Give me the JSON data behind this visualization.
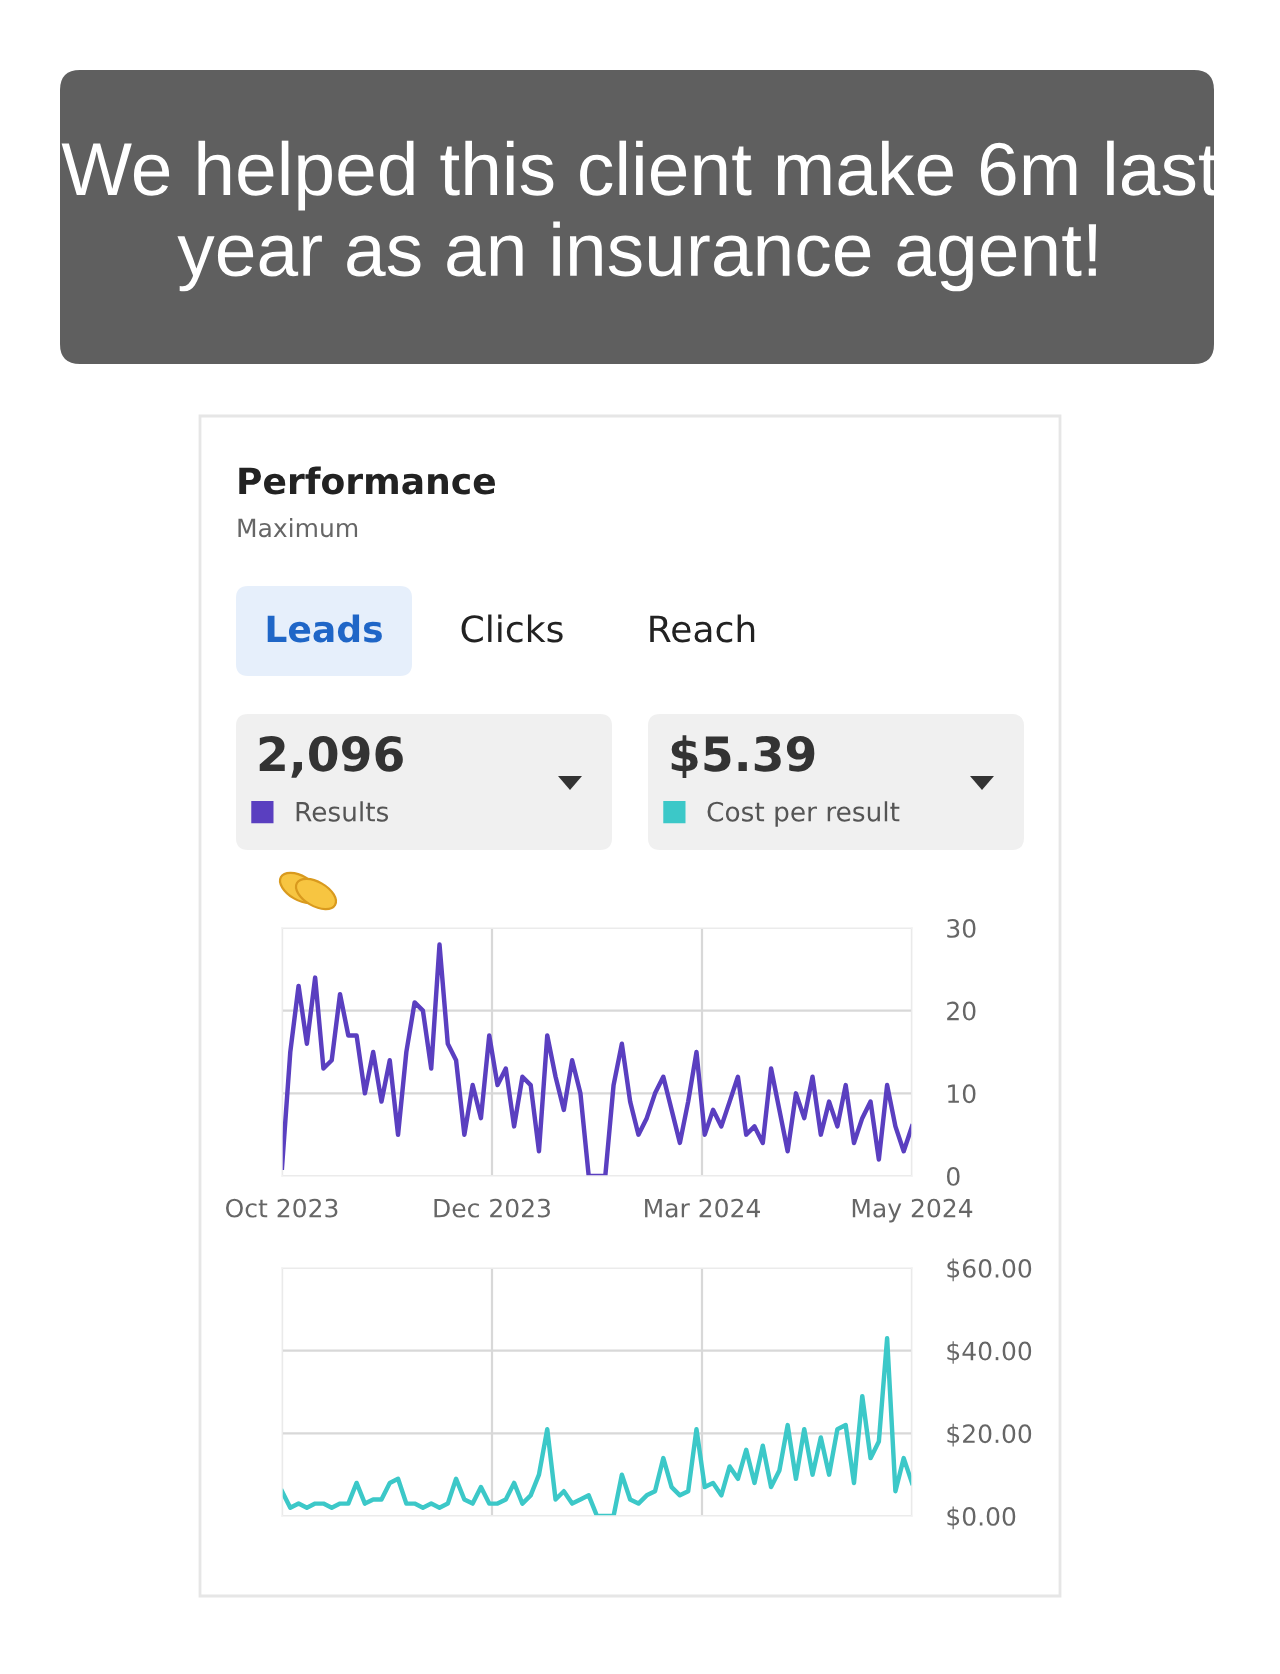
{
  "chart_data": [
    {
      "type": "other",
      "title": "We helped this client make 6m last year as an insurance agent!"
    },
    {
      "type": "line",
      "title": "Performance",
      "subtitle": "Maximum",
      "annotations": [
        "Leads",
        "Clicks",
        "Reach",
        "2,096",
        "$5.39"
      ],
      "x": [
        "2023-10-01",
        "2023-10-04",
        "2023-10-07",
        "2023-10-10",
        "2023-10-13",
        "2023-10-16",
        "2023-10-19",
        "2023-10-22",
        "2023-10-25",
        "2023-10-28",
        "2023-10-31",
        "2023-11-03",
        "2023-11-06",
        "2023-11-09",
        "2023-11-12",
        "2023-11-15",
        "2023-11-18",
        "2023-11-21",
        "2023-11-24",
        "2023-11-27",
        "2023-11-30",
        "2023-12-03",
        "2023-12-06",
        "2023-12-09",
        "2023-12-12",
        "2023-12-15",
        "2023-12-18",
        "2023-12-21",
        "2023-12-24",
        "2023-12-27",
        "2023-12-30",
        "2024-01-02",
        "2024-01-05",
        "2024-01-08",
        "2024-01-11",
        "2024-01-14",
        "2024-01-17",
        "2024-01-20",
        "2024-01-23",
        "2024-01-26",
        "2024-01-29",
        "2024-02-01",
        "2024-02-04",
        "2024-02-07",
        "2024-02-10",
        "2024-02-13",
        "2024-02-16",
        "2024-02-19",
        "2024-02-22",
        "2024-02-25",
        "2024-02-28",
        "2024-03-02",
        "2024-03-05",
        "2024-03-08",
        "2024-03-11",
        "2024-03-14",
        "2024-03-17",
        "2024-03-20",
        "2024-03-23",
        "2024-03-26",
        "2024-03-29",
        "2024-04-01",
        "2024-04-04",
        "2024-04-07",
        "2024-04-10",
        "2024-04-13",
        "2024-04-16",
        "2024-04-19",
        "2024-04-22",
        "2024-04-25",
        "2024-04-28",
        "2024-05-01",
        "2024-05-04",
        "2024-05-07",
        "2024-05-10",
        "2024-05-13",
        "2024-05-16"
      ],
      "series": [
        {
          "name": "Results",
          "color": "#5a3fc0",
          "values": [
            1,
            15,
            23,
            16,
            24,
            13,
            14,
            22,
            17,
            17,
            10,
            15,
            9,
            14,
            5,
            15,
            21,
            20,
            13,
            28,
            16,
            14,
            5,
            11,
            7,
            17,
            11,
            13,
            6,
            12,
            11,
            3,
            17,
            12,
            8,
            14,
            10,
            0,
            0,
            0,
            11,
            16,
            9,
            5,
            7,
            10,
            12,
            8,
            4,
            9,
            15,
            5,
            8,
            6,
            9,
            12,
            5,
            6,
            4,
            13,
            8,
            3,
            10,
            7,
            12,
            5,
            9,
            6,
            11,
            4,
            7,
            9,
            2,
            11,
            6,
            3,
            6
          ]
        }
      ],
      "xlim": [
        "2023-10-01",
        "2024-05-16"
      ],
      "xticks": [
        {
          "value": "2023-10-01",
          "label": "Oct 2023"
        },
        {
          "value": "2023-12-16",
          "label": "Dec 2023"
        },
        {
          "value": "2024-03-01",
          "label": "Mar 2024"
        },
        {
          "value": "2024-05-16",
          "label": "May 2024"
        }
      ],
      "ylim": [
        0,
        30
      ],
      "yticks": [
        0,
        10,
        20,
        30
      ],
      "grid": true,
      "legend": "top left"
    },
    {
      "type": "line",
      "x": [
        "2023-10-01",
        "2023-10-04",
        "2023-10-07",
        "2023-10-10",
        "2023-10-13",
        "2023-10-16",
        "2023-10-19",
        "2023-10-22",
        "2023-10-25",
        "2023-10-28",
        "2023-10-31",
        "2023-11-03",
        "2023-11-06",
        "2023-11-09",
        "2023-11-12",
        "2023-11-15",
        "2023-11-18",
        "2023-11-21",
        "2023-11-24",
        "2023-11-27",
        "2023-11-30",
        "2023-12-03",
        "2023-12-06",
        "2023-12-09",
        "2023-12-12",
        "2023-12-15",
        "2023-12-18",
        "2023-12-21",
        "2023-12-24",
        "2023-12-27",
        "2023-12-30",
        "2024-01-02",
        "2024-01-05",
        "2024-01-08",
        "2024-01-11",
        "2024-01-14",
        "2024-01-17",
        "2024-01-20",
        "2024-01-23",
        "2024-01-26",
        "2024-01-29",
        "2024-02-01",
        "2024-02-04",
        "2024-02-07",
        "2024-02-10",
        "2024-02-13",
        "2024-02-16",
        "2024-02-19",
        "2024-02-22",
        "2024-02-25",
        "2024-02-28",
        "2024-03-02",
        "2024-03-05",
        "2024-03-08",
        "2024-03-11",
        "2024-03-14",
        "2024-03-17",
        "2024-03-20",
        "2024-03-23",
        "2024-03-26",
        "2024-03-29",
        "2024-04-01",
        "2024-04-04",
        "2024-04-07",
        "2024-04-10",
        "2024-04-13",
        "2024-04-16",
        "2024-04-19",
        "2024-04-22",
        "2024-04-25",
        "2024-04-28",
        "2024-05-01",
        "2024-05-04",
        "2024-05-07",
        "2024-05-10",
        "2024-05-13",
        "2024-05-16"
      ],
      "series": [
        {
          "name": "Cost per result",
          "color": "#3cc8c8",
          "values": [
            6,
            2,
            3,
            2,
            3,
            3,
            2,
            3,
            3,
            8,
            3,
            4,
            4,
            8,
            9,
            3,
            3,
            2,
            3,
            2,
            3,
            9,
            4,
            3,
            7,
            3,
            3,
            4,
            8,
            3,
            5,
            10,
            21,
            4,
            6,
            3,
            4,
            5,
            0,
            0,
            0,
            10,
            4,
            3,
            5,
            6,
            14,
            7,
            5,
            6,
            21,
            7,
            8,
            5,
            12,
            9,
            16,
            8,
            17,
            7,
            11,
            22,
            9,
            21,
            10,
            19,
            10,
            21,
            22,
            8,
            29,
            14,
            18,
            43,
            6,
            14,
            8
          ]
        }
      ],
      "xlim": [
        "2023-10-01",
        "2024-05-16"
      ],
      "xticks": [
        {
          "value": "2023-10-01",
          "label": null
        },
        {
          "value": "2023-12-16",
          "label": null
        },
        {
          "value": "2024-03-01",
          "label": null
        },
        {
          "value": "2024-05-16",
          "label": null
        }
      ],
      "ylim": [
        0,
        60
      ],
      "yticks": [
        {
          "value": 0,
          "label": "$0.00"
        },
        {
          "value": 20,
          "label": "$20.00"
        },
        {
          "value": 40,
          "label": "$40.00"
        },
        {
          "value": 60,
          "label": "$60.00"
        }
      ],
      "grid": true,
      "legend": "top right",
      "tick_labels": "y"
    }
  ]
}
